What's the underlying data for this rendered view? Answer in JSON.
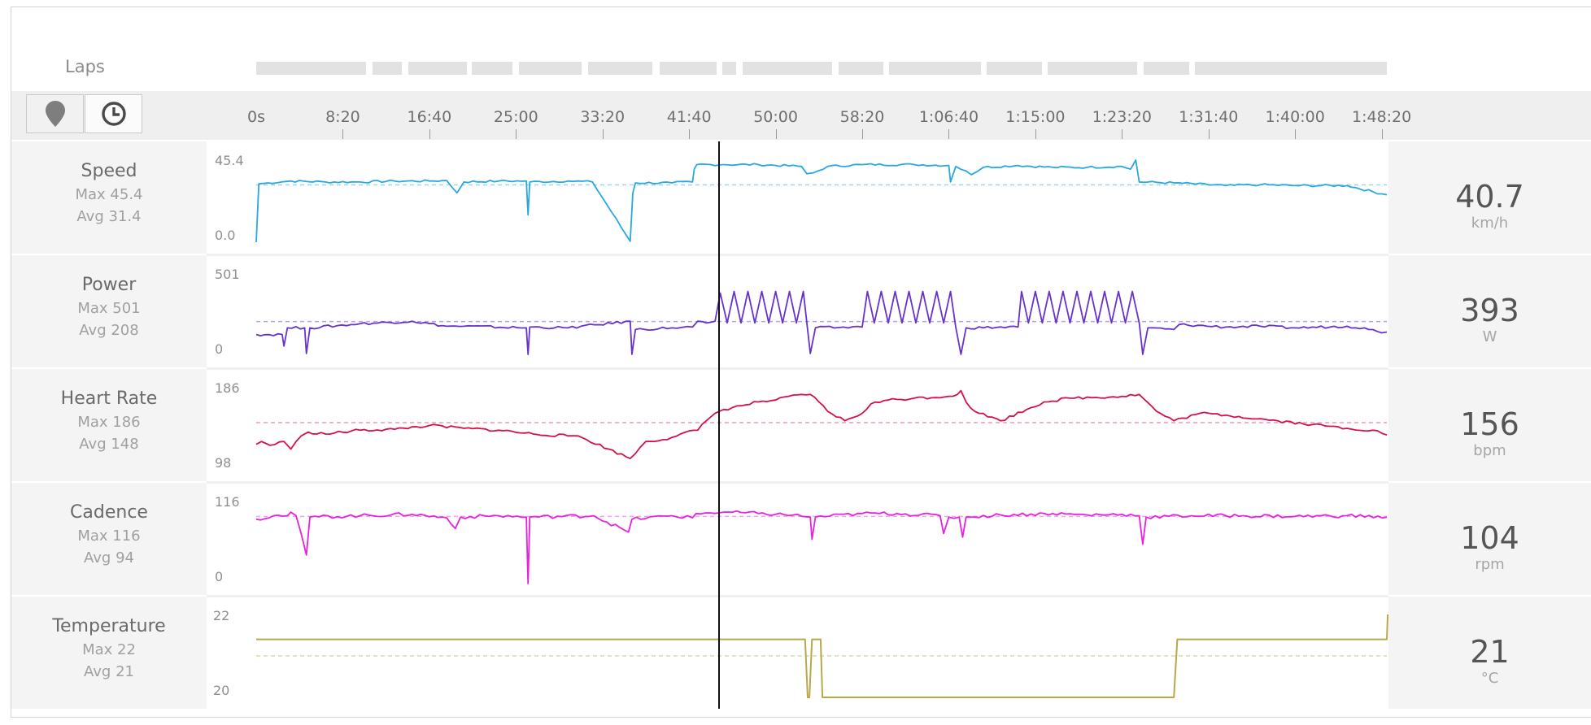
{
  "laps": {
    "label": "Laps",
    "segments": [
      [
        0,
        290
      ],
      [
        307,
        383
      ],
      [
        400,
        555
      ],
      [
        568,
        676
      ],
      [
        692,
        858
      ],
      [
        875,
        1045
      ],
      [
        1063,
        1213
      ],
      [
        1228,
        1264
      ],
      [
        1281,
        1518
      ],
      [
        1534,
        1652
      ],
      [
        1668,
        1910
      ],
      [
        1926,
        2071
      ],
      [
        2087,
        2322
      ],
      [
        2338,
        2458
      ],
      [
        2474,
        2980
      ]
    ],
    "total_seconds": 2980,
    "__comment_unused": ""
  },
  "toolbar": {
    "map_icon": "map-pin-icon",
    "time_icon": "clock-icon"
  },
  "time_axis": {
    "ticks": [
      "0s",
      "8:20",
      "16:40",
      "25:00",
      "33:20",
      "41:40",
      "50:00",
      "58:20",
      "1:06:40",
      "1:15:00",
      "1:23:20",
      "1:31:40",
      "1:40:00",
      "1:48:20"
    ],
    "tick_seconds": [
      0,
      500,
      1000,
      1500,
      2000,
      2500,
      3000,
      3500,
      4000,
      4500,
      5000,
      5500,
      6000,
      6500
    ]
  },
  "cursor_seconds": 2670,
  "metrics": [
    {
      "key": "speed",
      "name": "Speed",
      "max_label": "Max 45.4",
      "avg_label": "Avg 31.4",
      "current": "40.7",
      "unit": "km/h",
      "ymax_label": "45.4",
      "ymin_label": "0.0",
      "color": "#29a8e0",
      "avg_color": "#9fd6ef"
    },
    {
      "key": "power",
      "name": "Power",
      "max_label": "Max 501",
      "avg_label": "Avg 208",
      "current": "393",
      "unit": "W",
      "ymax_label": "501",
      "ymin_label": "0",
      "color": "#6633cc",
      "avg_color": "#b9a3e6"
    },
    {
      "key": "hr",
      "name": "Heart Rate",
      "max_label": "Max 186",
      "avg_label": "Avg 148",
      "current": "156",
      "unit": "bpm",
      "ymax_label": "186",
      "ymin_label": "98",
      "color": "#d4104a",
      "avg_color": "#ee97b1"
    },
    {
      "key": "cadence",
      "name": "Cadence",
      "max_label": "Max 116",
      "avg_label": "Avg 94",
      "current": "104",
      "unit": "rpm",
      "ymax_label": "116",
      "ymin_label": "0",
      "color": "#e820e0",
      "avg_color": "#f3a3ef"
    },
    {
      "key": "temp",
      "name": "Temperature",
      "max_label": "Max 22",
      "avg_label": "Avg 21",
      "current": "21",
      "unit": "°C",
      "ymax_label": "22",
      "ymin_label": "20",
      "color": "#b8a84a",
      "avg_color": "#ddd6a8"
    }
  ],
  "chart_data": {
    "type": "line",
    "x_unit": "seconds",
    "xlim": [
      0,
      6530
    ],
    "series": [
      {
        "name": "Speed",
        "unit": "km/h",
        "ylim": [
          0,
          45.4
        ],
        "avg": 31.4,
        "points": [
          [
            0,
            0
          ],
          [
            15,
            32
          ],
          [
            200,
            33.5
          ],
          [
            400,
            33
          ],
          [
            600,
            33
          ],
          [
            800,
            33.5
          ],
          [
            1000,
            33.5
          ],
          [
            1100,
            33.8
          ],
          [
            1160,
            27
          ],
          [
            1200,
            33
          ],
          [
            1400,
            33.5
          ],
          [
            1560,
            33.5
          ],
          [
            1570,
            15
          ],
          [
            1580,
            33
          ],
          [
            1800,
            33.5
          ],
          [
            1942,
            33
          ],
          [
            2160,
            0.5
          ],
          [
            2175,
            27
          ],
          [
            2190,
            32.5
          ],
          [
            2400,
            32.5
          ],
          [
            2520,
            33
          ],
          [
            2530,
            40
          ],
          [
            2545,
            42.5
          ],
          [
            2700,
            42.5
          ],
          [
            2900,
            42.5
          ],
          [
            3150,
            41.5
          ],
          [
            3180,
            37.5
          ],
          [
            3220,
            38
          ],
          [
            3300,
            41.5
          ],
          [
            3500,
            42.5
          ],
          [
            3800,
            42.5
          ],
          [
            4000,
            42
          ],
          [
            4010,
            33
          ],
          [
            4040,
            41.5
          ],
          [
            4100,
            39
          ],
          [
            4130,
            37
          ],
          [
            4200,
            41
          ],
          [
            4400,
            42
          ],
          [
            4600,
            41
          ],
          [
            4800,
            41
          ],
          [
            5000,
            41.5
          ],
          [
            5050,
            40
          ],
          [
            5080,
            45
          ],
          [
            5100,
            33
          ],
          [
            5300,
            32.5
          ],
          [
            5600,
            31
          ],
          [
            5800,
            31.5
          ],
          [
            6000,
            31
          ],
          [
            6300,
            31
          ],
          [
            6500,
            26.5
          ],
          [
            6530,
            26
          ]
        ]
      },
      {
        "name": "Power",
        "unit": "W",
        "ylim": [
          0,
          501
        ],
        "avg": 208,
        "points": [
          [
            0,
            130
          ],
          [
            150,
            130
          ],
          [
            160,
            60
          ],
          [
            180,
            170
          ],
          [
            280,
            170
          ],
          [
            290,
            15
          ],
          [
            310,
            170
          ],
          [
            600,
            195
          ],
          [
            900,
            210
          ],
          [
            1100,
            180
          ],
          [
            1200,
            180
          ],
          [
            1560,
            170
          ],
          [
            1570,
            10
          ],
          [
            1580,
            175
          ],
          [
            1800,
            170
          ],
          [
            2160,
            210
          ],
          [
            2170,
            10
          ],
          [
            2190,
            160
          ],
          [
            2400,
            170
          ],
          [
            2520,
            175
          ],
          [
            2550,
            210
          ],
          [
            2600,
            200
          ],
          [
            2650,
            210
          ],
          [
            2680,
            380
          ],
          [
            2720,
            200
          ],
          [
            2760,
            390
          ],
          [
            2800,
            200
          ],
          [
            2840,
            390
          ],
          [
            2880,
            200
          ],
          [
            2920,
            390
          ],
          [
            2960,
            200
          ],
          [
            3000,
            390
          ],
          [
            3040,
            200
          ],
          [
            3080,
            390
          ],
          [
            3120,
            200
          ],
          [
            3160,
            390
          ],
          [
            3200,
            15
          ],
          [
            3230,
            170
          ],
          [
            3500,
            175
          ],
          [
            3530,
            390
          ],
          [
            3570,
            200
          ],
          [
            3610,
            390
          ],
          [
            3650,
            200
          ],
          [
            3690,
            390
          ],
          [
            3730,
            200
          ],
          [
            3770,
            390
          ],
          [
            3810,
            200
          ],
          [
            3850,
            390
          ],
          [
            3890,
            200
          ],
          [
            3930,
            390
          ],
          [
            3970,
            200
          ],
          [
            4010,
            390
          ],
          [
            4040,
            175
          ],
          [
            4070,
            10
          ],
          [
            4100,
            170
          ],
          [
            4400,
            175
          ],
          [
            4420,
            390
          ],
          [
            4460,
            200
          ],
          [
            4500,
            390
          ],
          [
            4540,
            200
          ],
          [
            4580,
            390
          ],
          [
            4620,
            200
          ],
          [
            4660,
            390
          ],
          [
            4700,
            200
          ],
          [
            4740,
            390
          ],
          [
            4780,
            200
          ],
          [
            4820,
            390
          ],
          [
            4860,
            200
          ],
          [
            4900,
            390
          ],
          [
            4940,
            200
          ],
          [
            4980,
            390
          ],
          [
            5020,
            200
          ],
          [
            5060,
            390
          ],
          [
            5100,
            200
          ],
          [
            5120,
            10
          ],
          [
            5150,
            170
          ],
          [
            5300,
            160
          ],
          [
            5330,
            190
          ],
          [
            5600,
            175
          ],
          [
            5800,
            180
          ],
          [
            6000,
            170
          ],
          [
            6300,
            180
          ],
          [
            6400,
            170
          ],
          [
            6500,
            140
          ],
          [
            6530,
            145
          ]
        ]
      },
      {
        "name": "Heart Rate",
        "unit": "bpm",
        "ylim": [
          98,
          186
        ],
        "avg": 148,
        "points": [
          [
            0,
            125
          ],
          [
            30,
            128
          ],
          [
            80,
            124
          ],
          [
            160,
            128
          ],
          [
            200,
            120
          ],
          [
            260,
            134
          ],
          [
            300,
            138
          ],
          [
            400,
            136
          ],
          [
            600,
            140
          ],
          [
            800,
            141
          ],
          [
            1000,
            145
          ],
          [
            1200,
            142
          ],
          [
            1400,
            140
          ],
          [
            1600,
            136
          ],
          [
            1800,
            134
          ],
          [
            1860,
            134
          ],
          [
            2160,
            110
          ],
          [
            2250,
            128
          ],
          [
            2350,
            130
          ],
          [
            2450,
            136
          ],
          [
            2550,
            140
          ],
          [
            2600,
            150
          ],
          [
            2650,
            158
          ],
          [
            2700,
            162
          ],
          [
            2800,
            166
          ],
          [
            2900,
            170
          ],
          [
            3000,
            172
          ],
          [
            3150,
            178
          ],
          [
            3200,
            178
          ],
          [
            3250,
            170
          ],
          [
            3300,
            160
          ],
          [
            3400,
            150
          ],
          [
            3500,
            158
          ],
          [
            3550,
            168
          ],
          [
            3650,
            172
          ],
          [
            3800,
            174
          ],
          [
            4000,
            176
          ],
          [
            4050,
            178
          ],
          [
            4070,
            182
          ],
          [
            4100,
            170
          ],
          [
            4150,
            160
          ],
          [
            4300,
            150
          ],
          [
            4450,
            162
          ],
          [
            4550,
            170
          ],
          [
            4700,
            174
          ],
          [
            5000,
            176
          ],
          [
            5100,
            178
          ],
          [
            5200,
            160
          ],
          [
            5300,
            150
          ],
          [
            5450,
            158
          ],
          [
            5600,
            156
          ],
          [
            5900,
            150
          ],
          [
            6100,
            146
          ],
          [
            6300,
            142
          ],
          [
            6450,
            140
          ],
          [
            6530,
            135
          ]
        ]
      },
      {
        "name": "Cadence",
        "unit": "rpm",
        "ylim": [
          0,
          116
        ],
        "avg": 94,
        "points": [
          [
            0,
            90
          ],
          [
            100,
            95
          ],
          [
            180,
            95
          ],
          [
            200,
            100
          ],
          [
            230,
            95
          ],
          [
            290,
            40
          ],
          [
            310,
            93
          ],
          [
            600,
            95
          ],
          [
            900,
            97
          ],
          [
            1100,
            92
          ],
          [
            1150,
            77
          ],
          [
            1180,
            93
          ],
          [
            1400,
            95
          ],
          [
            1560,
            93
          ],
          [
            1570,
            0
          ],
          [
            1580,
            93
          ],
          [
            1950,
            95
          ],
          [
            2150,
            72
          ],
          [
            2170,
            90
          ],
          [
            2400,
            95
          ],
          [
            2520,
            92
          ],
          [
            2540,
            98
          ],
          [
            2700,
            100
          ],
          [
            2900,
            98
          ],
          [
            3100,
            96
          ],
          [
            3200,
            93
          ],
          [
            3210,
            62
          ],
          [
            3230,
            93
          ],
          [
            3500,
            98
          ],
          [
            3700,
            98
          ],
          [
            3950,
            95
          ],
          [
            3970,
            70
          ],
          [
            4000,
            93
          ],
          [
            4060,
            93
          ],
          [
            4080,
            65
          ],
          [
            4100,
            93
          ],
          [
            4300,
            96
          ],
          [
            4600,
            98
          ],
          [
            4800,
            96
          ],
          [
            5000,
            97
          ],
          [
            5100,
            95
          ],
          [
            5120,
            55
          ],
          [
            5140,
            93
          ],
          [
            5400,
            95
          ],
          [
            5700,
            95
          ],
          [
            6000,
            94
          ],
          [
            6300,
            95
          ],
          [
            6530,
            93
          ]
        ]
      },
      {
        "name": "Temperature",
        "unit": "°C",
        "ylim": [
          20,
          22
        ],
        "avg": 21,
        "points": [
          [
            0,
            21.4
          ],
          [
            3170,
            21.4
          ],
          [
            3185,
            20
          ],
          [
            3195,
            20
          ],
          [
            3210,
            21.4
          ],
          [
            3260,
            21.4
          ],
          [
            3270,
            20
          ],
          [
            3350,
            20
          ],
          [
            5300,
            20
          ],
          [
            5320,
            21.4
          ],
          [
            6530,
            21.4
          ],
          [
            6535,
            22
          ]
        ]
      }
    ]
  }
}
